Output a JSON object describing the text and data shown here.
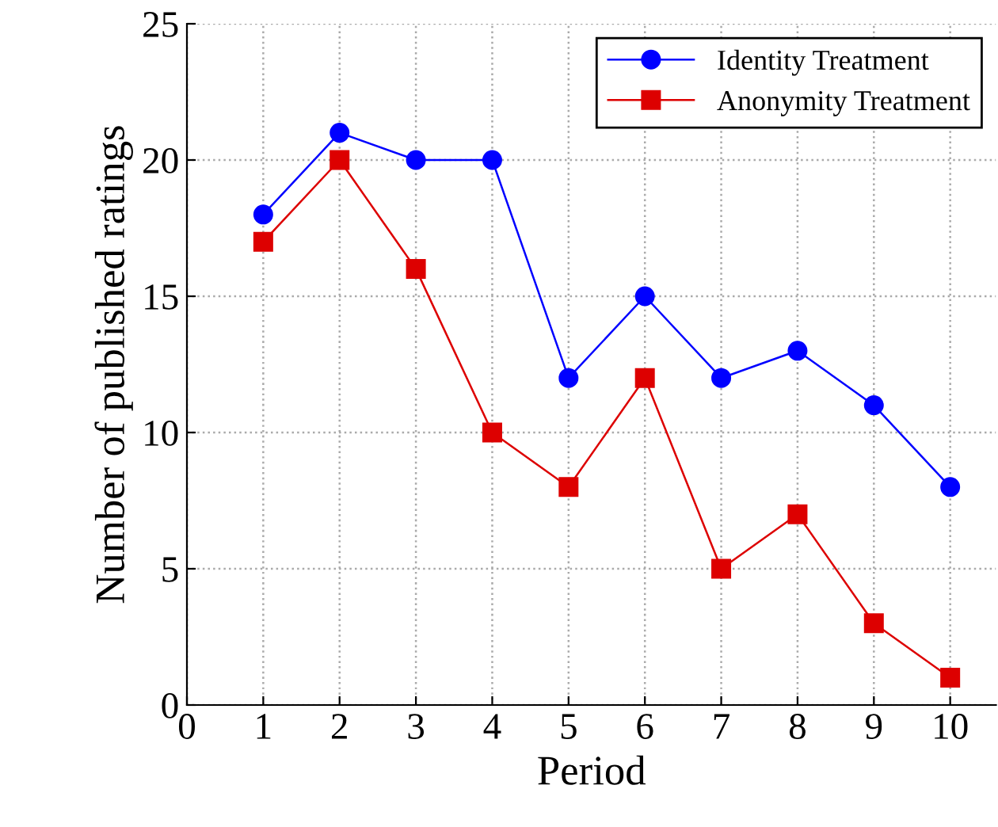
{
  "chart_data": {
    "type": "line",
    "xlabel": "Period",
    "ylabel": "Number of published ratings",
    "x": [
      1,
      2,
      3,
      4,
      5,
      6,
      7,
      8,
      9,
      10
    ],
    "series": [
      {
        "name": "Identity Treatment",
        "color": "#0000ff",
        "marker": "circle",
        "values": [
          18,
          21,
          20,
          20,
          12,
          15,
          12,
          13,
          11,
          8
        ]
      },
      {
        "name": "Anonymity Treatment",
        "color": "#dd0000",
        "marker": "square",
        "values": [
          17,
          20,
          16,
          10,
          8,
          12,
          5,
          7,
          3,
          1
        ]
      }
    ],
    "xlim": [
      0,
      10.6
    ],
    "ylim": [
      0,
      25
    ],
    "xticks": [
      0,
      1,
      2,
      3,
      4,
      5,
      6,
      7,
      8,
      9,
      10
    ],
    "yticks": [
      0,
      5,
      10,
      15,
      20,
      25
    ],
    "grid": true,
    "legend": "top right",
    "line_style": "solid"
  }
}
